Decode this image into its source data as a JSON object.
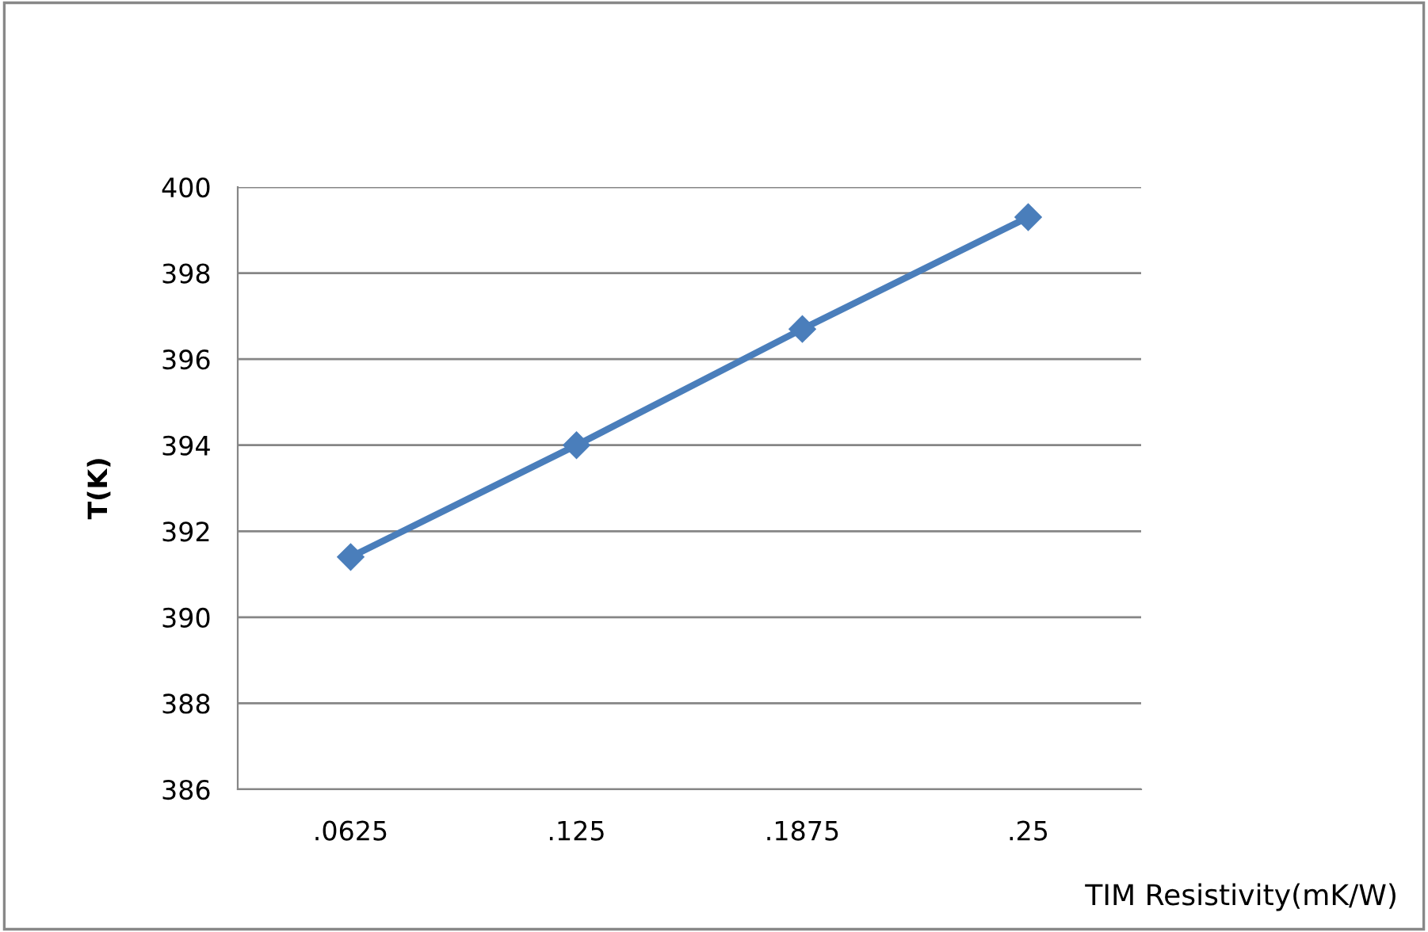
{
  "chart_data": {
    "type": "line",
    "xlabel": "TIM Resistivity(mK/W)",
    "ylabel": "T(K)",
    "categories": [
      ".0625",
      ".125",
      ".1875",
      ".25"
    ],
    "series": [
      {
        "color": "#4a7ebb",
        "values": [
          391.4,
          394.0,
          396.7,
          399.3
        ]
      }
    ],
    "ylim": [
      386,
      400
    ],
    "yticks": [
      386,
      388,
      390,
      392,
      394,
      396,
      398,
      400
    ],
    "grid": "y",
    "marker": "diamond",
    "line_style": "solid"
  }
}
